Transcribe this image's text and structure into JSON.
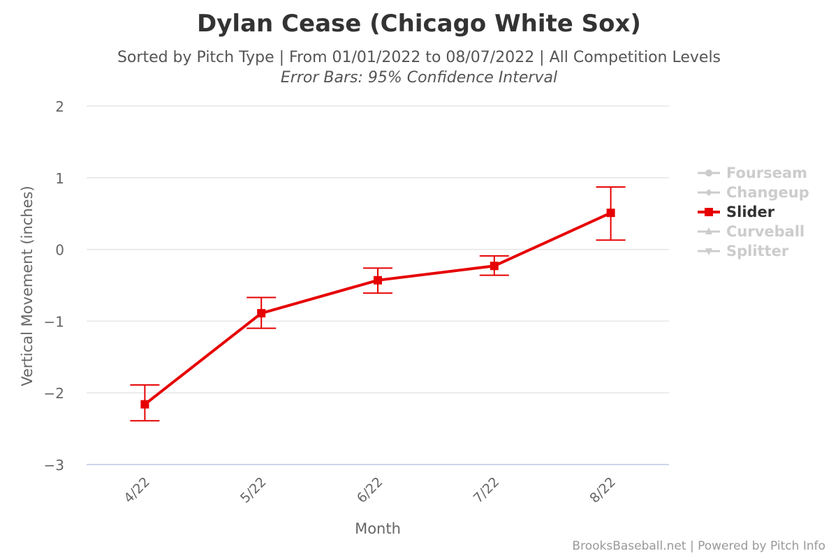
{
  "header": {
    "title": "Dylan Cease (Chicago White Sox)",
    "subtitle": "Sorted by Pitch Type | From 01/01/2022 to 08/07/2022 | All Competition Levels",
    "subtitle2": "Error Bars: 95% Confidence Interval"
  },
  "credits": "BrooksBaseball.net | Powered by Pitch Info",
  "legend": {
    "items": [
      {
        "label": "Fourseam",
        "marker": "circle",
        "active": false,
        "color": "#cccccc"
      },
      {
        "label": "Changeup",
        "marker": "diamond",
        "active": false,
        "color": "#cccccc"
      },
      {
        "label": "Slider",
        "marker": "square",
        "active": true,
        "color": "#e60000"
      },
      {
        "label": "Curveball",
        "marker": "triangle",
        "active": false,
        "color": "#cccccc"
      },
      {
        "label": "Splitter",
        "marker": "triangle-down",
        "active": false,
        "color": "#cccccc"
      }
    ]
  },
  "chart_data": {
    "type": "line",
    "title": "Dylan Cease (Chicago White Sox)",
    "subtitle": "Sorted by Pitch Type | From 01/01/2022 to 08/07/2022 | All Competition Levels",
    "xlabel": "Month",
    "ylabel": "Vertical Movement (inches)",
    "categories": [
      "4/22",
      "5/22",
      "6/22",
      "7/22",
      "8/22"
    ],
    "ylim": [
      -3,
      2
    ],
    "yticks": [
      2,
      1,
      0,
      -1,
      -2,
      -3
    ],
    "ytick_labels": [
      "2",
      "1",
      "0",
      "−1",
      "−2",
      "−3"
    ],
    "grid": true,
    "legend_position": "right",
    "series": [
      {
        "name": "Slider",
        "color": "#e60000",
        "values": [
          -2.16,
          -0.89,
          -0.43,
          -0.23,
          0.51
        ],
        "error_low": [
          -2.39,
          -1.1,
          -0.61,
          -0.36,
          0.13
        ],
        "error_high": [
          -1.89,
          -0.67,
          -0.26,
          -0.09,
          0.87
        ]
      }
    ],
    "hidden_series": [
      "Fourseam",
      "Changeup",
      "Curveball",
      "Splitter"
    ]
  }
}
